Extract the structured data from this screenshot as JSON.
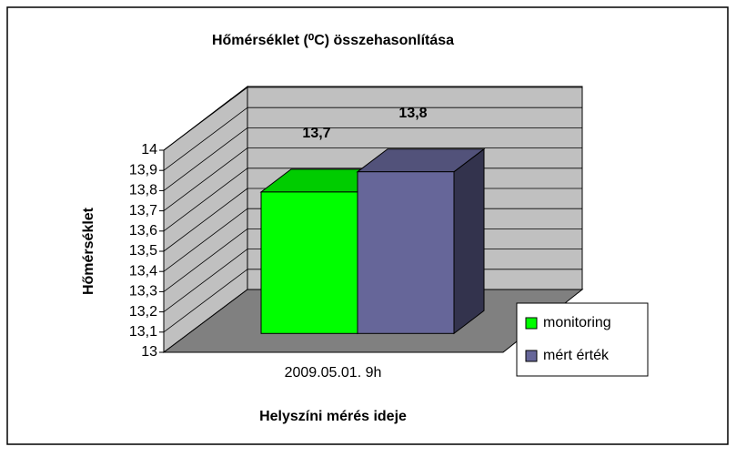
{
  "chart_data": {
    "type": "bar3d",
    "title": "Hőmérséklet (⁰C) összehasonlítása",
    "x_label": "Helyszíni mérés ideje",
    "y_label": "Hőmérséklet",
    "categories": [
      "2009.05.01.  9h"
    ],
    "series": [
      {
        "name": "monitoring",
        "color": "#00ff00",
        "values": [
          13.7
        ],
        "value_labels": [
          "13,7"
        ]
      },
      {
        "name": "mért érték",
        "color": "#666699",
        "values": [
          13.8
        ],
        "value_labels": [
          "13,8"
        ]
      }
    ],
    "ylim": [
      13,
      14
    ],
    "yticks": [
      13,
      {
        "value": 13.1,
        "label": "13,1"
      },
      {
        "value": 13.2,
        "label": "13,2"
      },
      {
        "value": 13.3,
        "label": "13,3"
      },
      {
        "value": 13.4,
        "label": "13,4"
      },
      {
        "value": 13.5,
        "label": "13,5"
      },
      {
        "value": 13.6,
        "label": "13,6"
      },
      {
        "value": 13.7,
        "label": "13,7"
      },
      {
        "value": 13.8,
        "label": "13,8"
      },
      {
        "value": 13.9,
        "label": "13,9"
      },
      14
    ],
    "grid": true,
    "legend": "right"
  }
}
